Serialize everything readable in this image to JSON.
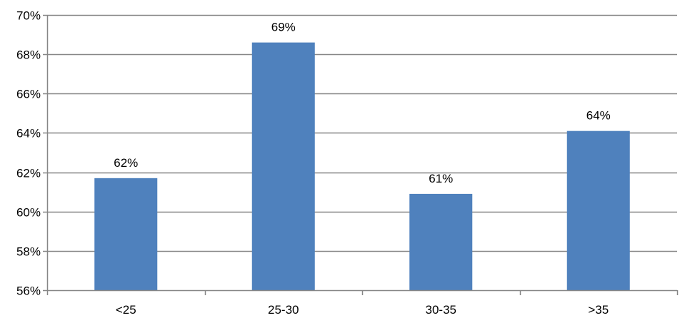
{
  "chart_data": {
    "type": "bar",
    "categories": [
      "<25",
      "25-30",
      "30-35",
      ">35"
    ],
    "values": [
      61.7,
      68.6,
      60.9,
      64.1
    ],
    "data_labels": [
      "62%",
      "69%",
      "61%",
      "64%"
    ],
    "title": "",
    "xlabel": "",
    "ylabel": "",
    "ylim": [
      56,
      70
    ],
    "y_ticks": [
      56,
      58,
      60,
      62,
      64,
      66,
      68,
      70
    ],
    "y_tick_labels": [
      "56%",
      "58%",
      "60%",
      "62%",
      "64%",
      "66%",
      "68%",
      "70%"
    ],
    "grid": true,
    "legend": "none",
    "bar_color": "#4f81bd",
    "grid_color": "#868686"
  }
}
